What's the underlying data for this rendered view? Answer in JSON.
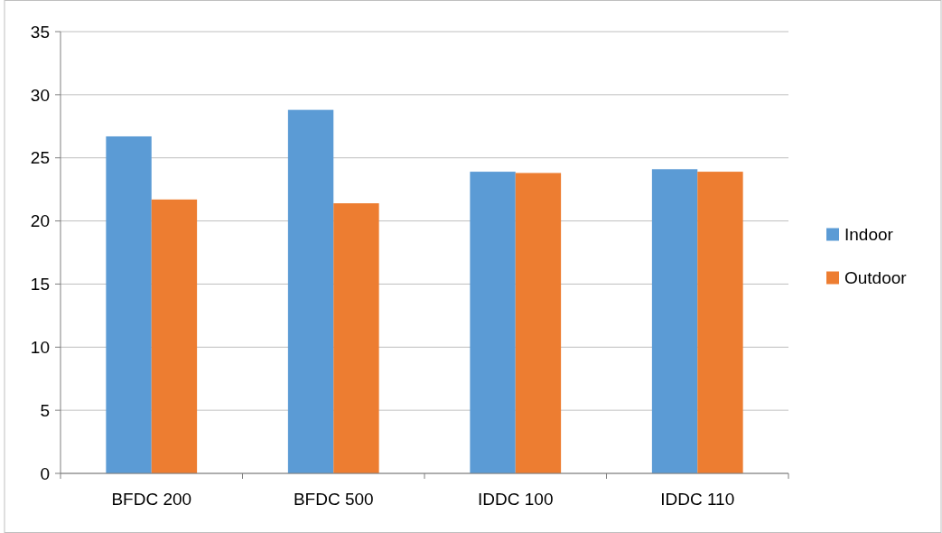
{
  "chart_data": {
    "type": "bar",
    "categories": [
      "BFDC 200",
      "BFDC 500",
      "IDDC 100",
      "IDDC 110"
    ],
    "series": [
      {
        "name": "Indoor",
        "color": "#5b9bd5",
        "values": [
          26.7,
          28.8,
          23.9,
          24.1
        ]
      },
      {
        "name": "Outdoor",
        "color": "#ed7d31",
        "values": [
          21.7,
          21.4,
          23.8,
          23.9
        ]
      }
    ],
    "ylim": [
      0,
      35
    ],
    "yticks": [
      0,
      5,
      10,
      15,
      20,
      25,
      30,
      35
    ],
    "grid": "y",
    "legend": "right"
  }
}
